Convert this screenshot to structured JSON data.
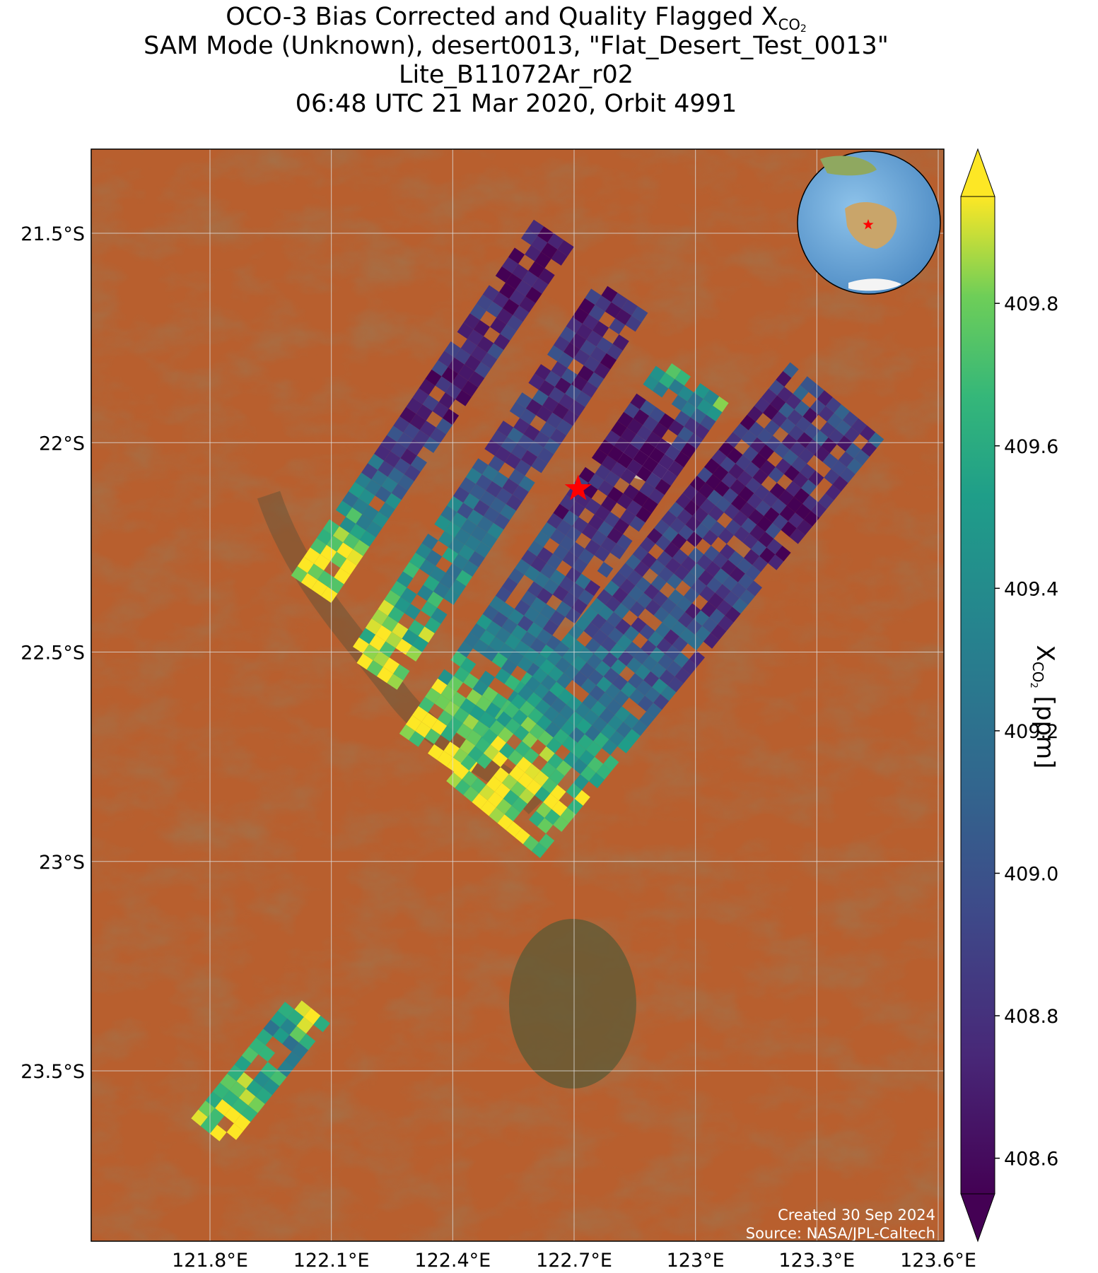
{
  "title": {
    "line1_prefix": "OCO-3 Bias Corrected and Quality Flagged X",
    "line1_sub": "CO",
    "line1_sub2": "2",
    "line2": "SAM Mode (Unknown), desert0013, \"Flat_Desert_Test_0013\"",
    "line3": "Lite_B11072Ar_r02",
    "line4": "06:48 UTC 21 Mar 2020, Orbit 4991"
  },
  "map": {
    "lat_range": [
      -23.9,
      -21.3
    ],
    "lon_range": [
      121.5,
      123.7
    ],
    "lat_ticks": [
      {
        "value": -21.5,
        "label": "21.5°S"
      },
      {
        "value": -22.0,
        "label": "22°S"
      },
      {
        "value": -22.5,
        "label": "22.5°S"
      },
      {
        "value": -23.0,
        "label": "23°S"
      },
      {
        "value": -23.5,
        "label": "23.5°S"
      }
    ],
    "lon_ticks": [
      {
        "value": 121.8,
        "label": "121.8°E"
      },
      {
        "value": 122.1,
        "label": "122.1°E"
      },
      {
        "value": 122.4,
        "label": "122.4°E"
      },
      {
        "value": 122.7,
        "label": "122.7°E"
      },
      {
        "value": 123.0,
        "label": "123°E"
      },
      {
        "value": 123.3,
        "label": "123.3°E"
      },
      {
        "value": 123.6,
        "label": "123.6°E"
      }
    ],
    "target_marker": {
      "lat": -22.11,
      "lon": 122.71,
      "color": "#ff0000"
    },
    "credit_line1": "Created 30 Sep 2024",
    "credit_line2": "Source: NASA/JPL-Caltech",
    "colors": {
      "land": "#b85f2e",
      "gridline": "#dddddd",
      "ocean": "#5f9ed1",
      "marker": "#ff0000"
    }
  },
  "colorbar": {
    "label_prefix": "X",
    "label_sub": "CO",
    "label_sub2": "2",
    "label_suffix": " [ppm]",
    "range": [
      408.55,
      409.95
    ],
    "extend": "both",
    "colormap": "viridis",
    "ticks": [
      {
        "value": 408.6,
        "label": "408.6"
      },
      {
        "value": 408.8,
        "label": "408.8"
      },
      {
        "value": 409.0,
        "label": "409.0"
      },
      {
        "value": 409.2,
        "label": "409.2"
      },
      {
        "value": 409.4,
        "label": "409.4"
      },
      {
        "value": 409.6,
        "label": "409.6"
      },
      {
        "value": 409.8,
        "label": "409.8"
      }
    ]
  },
  "chart_data": {
    "type": "heatmap",
    "description_units": "XCO2 ppm by swath",
    "swaths": [
      {
        "start": {
          "lat": -22.35,
          "lon": 122.05
        },
        "end": {
          "lat": -21.5,
          "lon": 122.65
        },
        "width_deg": 0.12,
        "values_along": [
          409.9,
          409.8,
          409.4,
          409.0,
          408.8,
          408.7,
          408.8,
          408.7,
          408.6,
          408.7
        ]
      },
      {
        "start": {
          "lat": -22.55,
          "lon": 122.2
        },
        "end": {
          "lat": -21.65,
          "lon": 122.82
        },
        "width_deg": 0.15,
        "values_along": [
          409.9,
          409.7,
          409.5,
          409.3,
          409.1,
          409.0,
          408.8,
          408.8,
          408.7,
          408.7
        ]
      },
      {
        "start": {
          "lat": -22.75,
          "lon": 122.35
        },
        "end": {
          "lat": -21.85,
          "lon": 123.0
        },
        "width_deg": 0.2,
        "values_along": [
          409.9,
          409.8,
          409.5,
          409.2,
          409.0,
          408.9,
          408.7,
          408.6,
          408.7,
          409.6
        ]
      },
      {
        "start": {
          "lat": -22.9,
          "lon": 122.5
        },
        "end": {
          "lat": -21.9,
          "lon": 123.35
        },
        "width_deg": 0.3,
        "values_along": [
          409.9,
          409.8,
          409.4,
          409.2,
          409.0,
          408.9,
          408.8,
          408.7,
          408.8,
          408.9
        ]
      },
      {
        "start": {
          "lat": -23.65,
          "lon": 121.8
        },
        "end": {
          "lat": -23.35,
          "lon": 122.05
        },
        "width_deg": 0.12,
        "values_along": [
          409.9,
          409.8,
          409.6,
          409.4,
          409.8
        ]
      }
    ]
  }
}
